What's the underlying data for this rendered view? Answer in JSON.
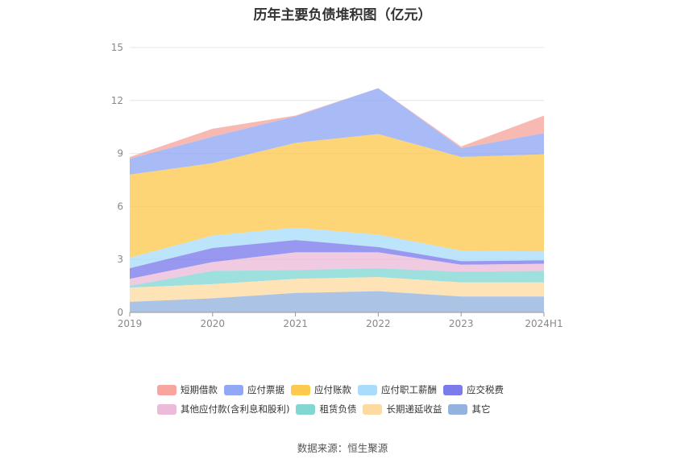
{
  "title": "历年主要负债堆积图（亿元）",
  "source": "数据来源：恒生聚源",
  "chart_data": {
    "type": "area",
    "stacked": true,
    "title": "历年主要负债堆积图（亿元）",
    "categories": [
      "2019",
      "2020",
      "2021",
      "2022",
      "2023",
      "2024H1"
    ],
    "ylim": [
      0,
      15
    ],
    "yticks": [
      0,
      3,
      6,
      9,
      12,
      15
    ],
    "grid": true,
    "legend_position": "bottom",
    "series": [
      {
        "name": "短期借款",
        "color": "#f7a59e",
        "values": [
          0.1,
          0.45,
          0.05,
          0.0,
          0.1,
          1.0
        ]
      },
      {
        "name": "应付票据",
        "color": "#90a8f5",
        "values": [
          0.9,
          1.5,
          1.5,
          2.6,
          0.5,
          1.2
        ]
      },
      {
        "name": "应付账款",
        "color": "#fdc94f",
        "values": [
          4.7,
          4.1,
          4.8,
          5.7,
          5.3,
          5.5
        ]
      },
      {
        "name": "应付职工薪酬",
        "color": "#a9dcfa",
        "values": [
          0.6,
          0.7,
          0.7,
          0.7,
          0.6,
          0.5
        ]
      },
      {
        "name": "应交税费",
        "color": "#7b7bec",
        "values": [
          0.6,
          0.8,
          0.7,
          0.3,
          0.2,
          0.2
        ]
      },
      {
        "name": "其他应付款(含利息和股利)",
        "color": "#ebbbd9",
        "values": [
          0.4,
          0.5,
          1.0,
          0.9,
          0.4,
          0.4
        ]
      },
      {
        "name": "租赁负债",
        "color": "#83d7d3",
        "values": [
          0.1,
          0.75,
          0.5,
          0.5,
          0.6,
          0.65
        ]
      },
      {
        "name": "长期递延收益",
        "color": "#fddba0",
        "values": [
          0.8,
          0.8,
          0.8,
          0.8,
          0.8,
          0.8
        ]
      },
      {
        "name": "其它",
        "color": "#94b2de",
        "values": [
          0.6,
          0.8,
          1.1,
          1.2,
          0.9,
          0.9
        ]
      }
    ]
  }
}
